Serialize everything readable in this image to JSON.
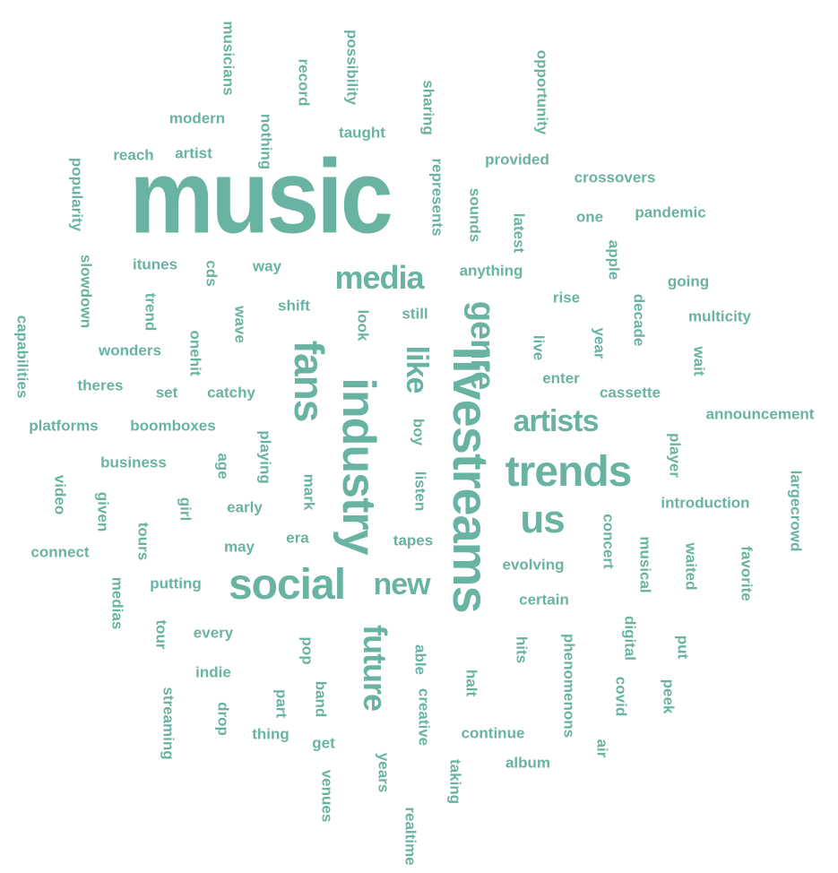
{
  "wordcloud": {
    "color": "#69b3a2",
    "words": [
      {
        "text": "music",
        "weight": 100
      },
      {
        "text": "livestreams",
        "weight": 48
      },
      {
        "text": "industry",
        "weight": 45
      },
      {
        "text": "trends",
        "weight": 42
      },
      {
        "text": "social",
        "weight": 42
      },
      {
        "text": "fans",
        "weight": 40
      },
      {
        "text": "us",
        "weight": 38
      },
      {
        "text": "genre",
        "weight": 33
      },
      {
        "text": "future",
        "weight": 32
      },
      {
        "text": "media",
        "weight": 32
      },
      {
        "text": "artists",
        "weight": 30
      },
      {
        "text": "like",
        "weight": 30
      },
      {
        "text": "new",
        "weight": 30
      },
      {
        "text": "announcement",
        "weight": 15
      },
      {
        "text": "crossovers",
        "weight": 15
      },
      {
        "text": "largecrowd",
        "weight": 15
      },
      {
        "text": "introduction",
        "weight": 15
      },
      {
        "text": "multicity",
        "weight": 15
      },
      {
        "text": "pandemic",
        "weight": 15
      },
      {
        "text": "boomboxes",
        "weight": 15
      },
      {
        "text": "cassette",
        "weight": 15
      },
      {
        "text": "phenomenons",
        "weight": 15
      },
      {
        "text": "capabilities",
        "weight": 15
      },
      {
        "text": "opportunity",
        "weight": 15
      },
      {
        "text": "possibility",
        "weight": 15
      },
      {
        "text": "musicians",
        "weight": 15
      },
      {
        "text": "platforms",
        "weight": 15
      },
      {
        "text": "popularity",
        "weight": 15
      },
      {
        "text": "represents",
        "weight": 15
      },
      {
        "text": "streaming",
        "weight": 15
      },
      {
        "text": "continue",
        "weight": 15
      },
      {
        "text": "evolving",
        "weight": 15
      },
      {
        "text": "business",
        "weight": 15
      },
      {
        "text": "provided",
        "weight": 15
      },
      {
        "text": "anything",
        "weight": 15
      },
      {
        "text": "slowdown",
        "weight": 15
      },
      {
        "text": "realtime",
        "weight": 15
      },
      {
        "text": "favorite",
        "weight": 15
      },
      {
        "text": "concert",
        "weight": 15
      },
      {
        "text": "musical",
        "weight": 15
      },
      {
        "text": "nothing",
        "weight": 15
      },
      {
        "text": "wonders",
        "weight": 15
      },
      {
        "text": "connect",
        "weight": 15
      },
      {
        "text": "putting",
        "weight": 15
      },
      {
        "text": "certain",
        "weight": 15
      },
      {
        "text": "sharing",
        "weight": 15
      },
      {
        "text": "creative",
        "weight": 15
      },
      {
        "text": "playing",
        "weight": 15
      },
      {
        "text": "digital",
        "weight": 15
      },
      {
        "text": "waited",
        "weight": 15
      },
      {
        "text": "modern",
        "weight": 15
      },
      {
        "text": "itunes",
        "weight": 15
      },
      {
        "text": "theres",
        "weight": 15
      },
      {
        "text": "catchy",
        "weight": 15
      },
      {
        "text": "taught",
        "weight": 15
      },
      {
        "text": "record",
        "weight": 15
      },
      {
        "text": "sounds",
        "weight": 15
      },
      {
        "text": "latest",
        "weight": 15
      },
      {
        "text": "decade",
        "weight": 15
      },
      {
        "text": "player",
        "weight": 15
      },
      {
        "text": "medias",
        "weight": 15
      },
      {
        "text": "venues",
        "weight": 15
      },
      {
        "text": "taking",
        "weight": 15
      },
      {
        "text": "album",
        "weight": 15
      },
      {
        "text": "artist",
        "weight": 15
      },
      {
        "text": "reach",
        "weight": 15
      },
      {
        "text": "shift",
        "weight": 15
      },
      {
        "text": "still",
        "weight": 15
      },
      {
        "text": "going",
        "weight": 15
      },
      {
        "text": "apple",
        "weight": 15
      },
      {
        "text": "onehit",
        "weight": 15
      },
      {
        "text": "trend",
        "weight": 15
      },
      {
        "text": "wave",
        "weight": 15
      },
      {
        "text": "enter",
        "weight": 15
      },
      {
        "text": "early",
        "weight": 15
      },
      {
        "text": "tapes",
        "weight": 15
      },
      {
        "text": "listen",
        "weight": 15
      },
      {
        "text": "years",
        "weight": 15
      },
      {
        "text": "every",
        "weight": 15
      },
      {
        "text": "indie",
        "weight": 15
      },
      {
        "text": "video",
        "weight": 15
      },
      {
        "text": "given",
        "weight": 15
      },
      {
        "text": "tours",
        "weight": 15
      },
      {
        "text": "thing",
        "weight": 15
      },
      {
        "text": "peek",
        "weight": 15
      },
      {
        "text": "covid",
        "weight": 15
      },
      {
        "text": "one",
        "weight": 15
      },
      {
        "text": "rise",
        "weight": 15
      },
      {
        "text": "year",
        "weight": 15
      },
      {
        "text": "live",
        "weight": 15
      },
      {
        "text": "wait",
        "weight": 15
      },
      {
        "text": "look",
        "weight": 15
      },
      {
        "text": "way",
        "weight": 15
      },
      {
        "text": "cds",
        "weight": 15
      },
      {
        "text": "set",
        "weight": 15
      },
      {
        "text": "age",
        "weight": 15
      },
      {
        "text": "boy",
        "weight": 15
      },
      {
        "text": "girl",
        "weight": 15
      },
      {
        "text": "mark",
        "weight": 15
      },
      {
        "text": "may",
        "weight": 15
      },
      {
        "text": "era",
        "weight": 15
      },
      {
        "text": "tour",
        "weight": 15
      },
      {
        "text": "pop",
        "weight": 15
      },
      {
        "text": "drop",
        "weight": 15
      },
      {
        "text": "part",
        "weight": 15
      },
      {
        "text": "band",
        "weight": 15
      },
      {
        "text": "get",
        "weight": 15
      },
      {
        "text": "able",
        "weight": 15
      },
      {
        "text": "halt",
        "weight": 15
      },
      {
        "text": "hits",
        "weight": 15
      },
      {
        "text": "put",
        "weight": 15
      },
      {
        "text": "air",
        "weight": 15
      }
    ]
  }
}
